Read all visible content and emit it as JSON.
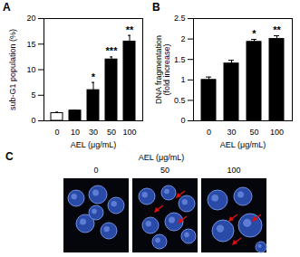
{
  "chart_data": [
    {
      "type": "bar",
      "title": "A",
      "categories": [
        "0",
        "10",
        "30",
        "50",
        "100"
      ],
      "values": [
        1.5,
        2,
        6,
        12,
        15.5
      ],
      "errors": [
        0.2,
        0.1,
        1.5,
        0.5,
        1.2
      ],
      "annotations": [
        null,
        null,
        "*",
        "***",
        "**"
      ],
      "colors": [
        "#ffffff",
        "#000000",
        "#000000",
        "#000000",
        "#000000"
      ],
      "x_label": "AEL (μg/mL)",
      "y_label": "sub-G1 population (%)",
      "ylim": [
        0,
        20
      ],
      "yticks": [
        0,
        5,
        10,
        15,
        20
      ]
    },
    {
      "type": "bar",
      "title": "B",
      "categories": [
        "0",
        "30",
        "50",
        "100"
      ],
      "values": [
        1.0,
        1.4,
        1.93,
        2.0
      ],
      "errors": [
        0.07,
        0.08,
        0.06,
        0.08
      ],
      "annotations": [
        null,
        null,
        "*",
        "**"
      ],
      "colors": [
        "#000000",
        "#000000",
        "#000000",
        "#000000"
      ],
      "x_label": "AEL (μg/mL)",
      "y_label": "DNA fragmentation\n(fold increase)",
      "ylim": [
        0,
        2.5
      ],
      "yticks": [
        0,
        0.5,
        1,
        1.5,
        2,
        2.5
      ]
    }
  ],
  "image_panel": {
    "title": "C",
    "caption": "AEL (μg/mL)",
    "labels": [
      "0",
      "50",
      "100"
    ]
  }
}
